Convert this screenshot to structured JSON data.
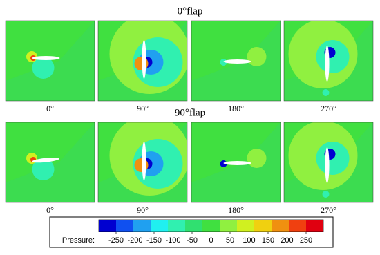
{
  "rows": [
    {
      "title": "0°flap",
      "panels": [
        "0°",
        "90°",
        "180°",
        "270°"
      ]
    },
    {
      "title": "90°flap",
      "panels": [
        "0°",
        "90°",
        "180°",
        "270°"
      ]
    }
  ],
  "colorbar": {
    "label": "Pressure:",
    "ticks": [
      -250,
      -200,
      -150,
      -100,
      -50,
      0,
      50,
      100,
      150,
      200,
      250
    ],
    "colors": [
      "#0000d0",
      "#1050f0",
      "#20a0f0",
      "#20f0f0",
      "#30f0b0",
      "#30e070",
      "#40e040",
      "#90f040",
      "#d0f020",
      "#f0d010",
      "#f09010",
      "#f04010",
      "#e00010"
    ]
  }
}
